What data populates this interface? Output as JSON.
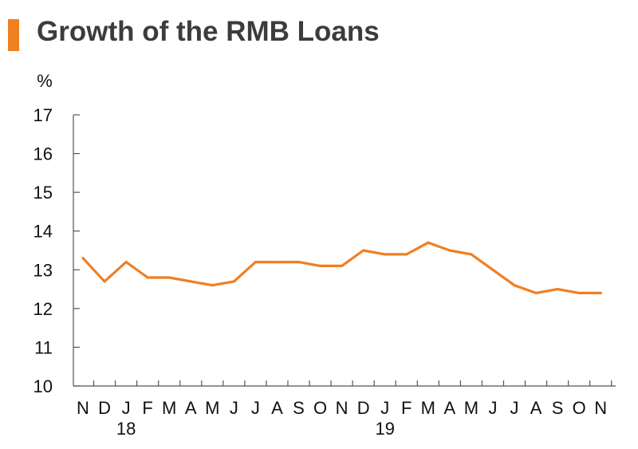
{
  "title": "Growth of the RMB Loans",
  "colors": {
    "accent": "#f07f22",
    "line": "#f07f22",
    "title": "#3c3c3c"
  },
  "chart_data": {
    "type": "line",
    "title": "Growth of the RMB Loans",
    "unit": "%",
    "xlabel": "",
    "ylabel": "%",
    "ylim": [
      10,
      17
    ],
    "yticks": [
      "10",
      "11",
      "12",
      "13",
      "14",
      "15",
      "16",
      "17"
    ],
    "grid": false,
    "x": [
      "Nov 2017",
      "Dec 2017",
      "Jan 2018",
      "Feb 2018",
      "Mar 2018",
      "Apr 2018",
      "May 2018",
      "Jun 2018",
      "Jul 2018",
      "Aug 2018",
      "Sep 2018",
      "Oct 2018",
      "Nov 2018",
      "Dec 2018",
      "Jan 2019",
      "Feb 2019",
      "Mar 2019",
      "Apr 2019",
      "May 2019",
      "Jun 2019",
      "Jul 2019",
      "Aug 2019",
      "Sep 2019",
      "Oct 2019",
      "Nov 2019"
    ],
    "xtick_labels": [
      "N",
      "D",
      "J",
      "F",
      "M",
      "A",
      "M",
      "J",
      "J",
      "A",
      "S",
      "O",
      "N",
      "D",
      "J",
      "F",
      "M",
      "A",
      "M",
      "J",
      "J",
      "A",
      "S",
      "O",
      "N"
    ],
    "year_labels": [
      {
        "label": "18",
        "index": 2
      },
      {
        "label": "19",
        "index": 14
      }
    ],
    "series": [
      {
        "values": [
          13.3,
          12.7,
          13.2,
          12.8,
          12.8,
          12.7,
          12.6,
          12.7,
          13.2,
          13.2,
          13.2,
          13.1,
          13.1,
          13.5,
          13.4,
          13.4,
          13.7,
          13.5,
          13.4,
          13.0,
          12.6,
          12.4,
          12.5,
          12.4,
          12.4
        ]
      }
    ]
  }
}
